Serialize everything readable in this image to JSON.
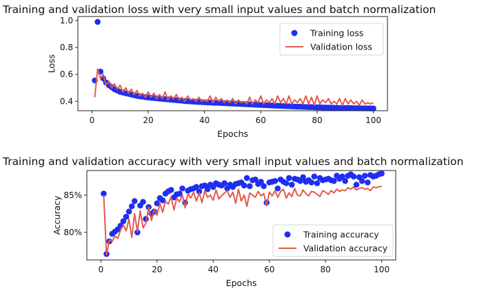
{
  "chart_data": [
    {
      "type": "scatter",
      "title": "Training and validation loss with very small input values and batch normalization",
      "xlabel": "Epochs",
      "ylabel": "Loss",
      "xlim": [
        -5,
        105
      ],
      "ylim": [
        0.33,
        1.03
      ],
      "x_ticks": [
        {
          "v": 0,
          "label": "0"
        },
        {
          "v": 20,
          "label": "20"
        },
        {
          "v": 40,
          "label": "40"
        },
        {
          "v": 60,
          "label": "60"
        },
        {
          "v": 80,
          "label": "80"
        },
        {
          "v": 100,
          "label": "100"
        }
      ],
      "y_ticks": [
        {
          "v": 0.4,
          "label": "0.4"
        },
        {
          "v": 0.6,
          "label": "0.6"
        },
        {
          "v": 0.8,
          "label": "0.8"
        },
        {
          "v": 1.0,
          "label": "1.0"
        }
      ],
      "legend_position": "top-right",
      "grid": false,
      "series": [
        {
          "name": "Training loss",
          "style": "points",
          "color": "#1f2ff0",
          "x": [
            1,
            2,
            3,
            4,
            5,
            6,
            7,
            8,
            9,
            10,
            11,
            12,
            13,
            14,
            15,
            16,
            17,
            18,
            19,
            20,
            21,
            22,
            23,
            24,
            25,
            26,
            27,
            28,
            29,
            30,
            31,
            32,
            33,
            34,
            35,
            36,
            37,
            38,
            39,
            40,
            41,
            42,
            43,
            44,
            45,
            46,
            47,
            48,
            49,
            50,
            51,
            52,
            53,
            54,
            55,
            56,
            57,
            58,
            59,
            60,
            61,
            62,
            63,
            64,
            65,
            66,
            67,
            68,
            69,
            70,
            71,
            72,
            73,
            74,
            75,
            76,
            77,
            78,
            79,
            80,
            81,
            82,
            83,
            84,
            85,
            86,
            87,
            88,
            89,
            90,
            91,
            92,
            93,
            94,
            95,
            96,
            97,
            98,
            99,
            100
          ],
          "values": [
            0.555,
            0.99,
            0.62,
            0.57,
            0.54,
            0.52,
            0.505,
            0.49,
            0.48,
            0.47,
            0.465,
            0.46,
            0.455,
            0.45,
            0.445,
            0.44,
            0.437,
            0.434,
            0.431,
            0.428,
            0.426,
            0.424,
            0.422,
            0.42,
            0.418,
            0.416,
            0.414,
            0.412,
            0.41,
            0.408,
            0.406,
            0.404,
            0.402,
            0.4,
            0.399,
            0.398,
            0.396,
            0.395,
            0.394,
            0.393,
            0.392,
            0.391,
            0.39,
            0.389,
            0.388,
            0.387,
            0.386,
            0.385,
            0.384,
            0.383,
            0.382,
            0.381,
            0.38,
            0.379,
            0.378,
            0.377,
            0.376,
            0.375,
            0.374,
            0.373,
            0.372,
            0.371,
            0.37,
            0.369,
            0.368,
            0.367,
            0.366,
            0.365,
            0.364,
            0.363,
            0.362,
            0.361,
            0.36,
            0.36,
            0.359,
            0.358,
            0.357,
            0.357,
            0.356,
            0.355,
            0.355,
            0.354,
            0.354,
            0.353,
            0.353,
            0.352,
            0.352,
            0.351,
            0.351,
            0.35,
            0.35,
            0.35,
            0.349,
            0.349,
            0.349,
            0.348,
            0.348,
            0.348,
            0.347,
            0.347
          ]
        },
        {
          "name": "Validation loss",
          "style": "line",
          "color": "#e05a4e",
          "x": [
            1,
            2,
            3,
            4,
            5,
            6,
            7,
            8,
            9,
            10,
            11,
            12,
            13,
            14,
            15,
            16,
            17,
            18,
            19,
            20,
            21,
            22,
            23,
            24,
            25,
            26,
            27,
            28,
            29,
            30,
            31,
            32,
            33,
            34,
            35,
            36,
            37,
            38,
            39,
            40,
            41,
            42,
            43,
            44,
            45,
            46,
            47,
            48,
            49,
            50,
            51,
            52,
            53,
            54,
            55,
            56,
            57,
            58,
            59,
            60,
            61,
            62,
            63,
            64,
            65,
            66,
            67,
            68,
            69,
            70,
            71,
            72,
            73,
            74,
            75,
            76,
            77,
            78,
            79,
            80,
            81,
            82,
            83,
            84,
            85,
            86,
            87,
            88,
            89,
            90,
            91,
            92,
            93,
            94,
            95,
            96,
            97,
            98,
            99,
            100
          ],
          "values": [
            0.43,
            0.64,
            0.57,
            0.6,
            0.52,
            0.55,
            0.5,
            0.53,
            0.49,
            0.52,
            0.47,
            0.5,
            0.46,
            0.49,
            0.45,
            0.48,
            0.44,
            0.46,
            0.43,
            0.47,
            0.43,
            0.46,
            0.42,
            0.45,
            0.42,
            0.47,
            0.41,
            0.44,
            0.42,
            0.45,
            0.41,
            0.43,
            0.4,
            0.44,
            0.41,
            0.42,
            0.4,
            0.43,
            0.4,
            0.41,
            0.4,
            0.44,
            0.39,
            0.43,
            0.4,
            0.42,
            0.39,
            0.41,
            0.39,
            0.42,
            0.38,
            0.41,
            0.39,
            0.4,
            0.38,
            0.43,
            0.38,
            0.41,
            0.39,
            0.44,
            0.38,
            0.41,
            0.39,
            0.42,
            0.38,
            0.44,
            0.39,
            0.42,
            0.38,
            0.44,
            0.38,
            0.41,
            0.39,
            0.42,
            0.38,
            0.44,
            0.38,
            0.43,
            0.37,
            0.44,
            0.38,
            0.41,
            0.39,
            0.42,
            0.38,
            0.4,
            0.38,
            0.42,
            0.37,
            0.42,
            0.38,
            0.41,
            0.38,
            0.4,
            0.37,
            0.41,
            0.38,
            0.39,
            0.38,
            0.39
          ]
        }
      ]
    },
    {
      "type": "scatter",
      "title": "Training and validation accuracy with very small input values and batch normalization",
      "xlabel": "Epochs",
      "ylabel": "Accuracy",
      "xlim": [
        -5,
        105
      ],
      "ylim": [
        76.3,
        88.3
      ],
      "x_ticks": [
        {
          "v": 0,
          "label": "0"
        },
        {
          "v": 20,
          "label": "20"
        },
        {
          "v": 40,
          "label": "40"
        },
        {
          "v": 60,
          "label": "60"
        },
        {
          "v": 80,
          "label": "80"
        },
        {
          "v": 100,
          "label": "100"
        }
      ],
      "y_ticks": [
        {
          "v": 80,
          "label": "80%"
        },
        {
          "v": 85,
          "label": "85%"
        }
      ],
      "legend_position": "bottom-right",
      "grid": false,
      "series": [
        {
          "name": "Training accuracy",
          "style": "points",
          "color": "#1f2ff0",
          "x": [
            1,
            2,
            3,
            4,
            5,
            6,
            7,
            8,
            9,
            10,
            11,
            12,
            13,
            14,
            15,
            16,
            17,
            18,
            19,
            20,
            21,
            22,
            23,
            24,
            25,
            26,
            27,
            28,
            29,
            30,
            31,
            32,
            33,
            34,
            35,
            36,
            37,
            38,
            39,
            40,
            41,
            42,
            43,
            44,
            45,
            46,
            47,
            48,
            49,
            50,
            51,
            52,
            53,
            54,
            55,
            56,
            57,
            58,
            59,
            60,
            61,
            62,
            63,
            64,
            65,
            66,
            67,
            68,
            69,
            70,
            71,
            72,
            73,
            74,
            75,
            76,
            77,
            78,
            79,
            80,
            81,
            82,
            83,
            84,
            85,
            86,
            87,
            88,
            89,
            90,
            91,
            92,
            93,
            94,
            95,
            96,
            97,
            98,
            99,
            100
          ],
          "values": [
            85.2,
            77.1,
            78.8,
            79.8,
            80.1,
            80.4,
            80.9,
            81.5,
            82.1,
            82.8,
            83.5,
            84.2,
            80.0,
            83.6,
            84.1,
            81.8,
            83.4,
            82.5,
            82.8,
            83.9,
            84.6,
            84.3,
            85.2,
            85.5,
            85.7,
            84.7,
            85.1,
            85.2,
            85.9,
            84.0,
            85.6,
            85.8,
            85.9,
            86.1,
            85.5,
            86.2,
            86.3,
            85.8,
            86.4,
            86.1,
            86.6,
            86.4,
            86.3,
            86.6,
            85.9,
            86.4,
            86.1,
            86.5,
            86.6,
            86.7,
            86.3,
            87.3,
            86.2,
            87.0,
            87.1,
            86.5,
            86.8,
            86.2,
            84.0,
            86.7,
            86.8,
            86.9,
            85.9,
            87.1,
            86.8,
            86.6,
            87.3,
            86.4,
            87.2,
            87.1,
            86.9,
            87.4,
            86.8,
            87.0,
            86.7,
            87.5,
            86.6,
            87.3,
            87.0,
            87.1,
            87.2,
            87.0,
            86.9,
            87.6,
            87.2,
            87.5,
            86.9,
            87.6,
            87.8,
            87.5,
            86.4,
            87.4,
            86.9,
            87.6,
            86.7,
            87.7,
            87.5,
            87.6,
            87.8,
            87.9
          ]
        },
        {
          "name": "Validation accuracy",
          "style": "line",
          "color": "#e05a4e",
          "x": [
            1,
            2,
            3,
            4,
            5,
            6,
            7,
            8,
            9,
            10,
            11,
            12,
            13,
            14,
            15,
            16,
            17,
            18,
            19,
            20,
            21,
            22,
            23,
            24,
            25,
            26,
            27,
            28,
            29,
            30,
            31,
            32,
            33,
            34,
            35,
            36,
            37,
            38,
            39,
            40,
            41,
            42,
            43,
            44,
            45,
            46,
            47,
            48,
            49,
            50,
            51,
            52,
            53,
            54,
            55,
            56,
            57,
            58,
            59,
            60,
            61,
            62,
            63,
            64,
            65,
            66,
            67,
            68,
            69,
            70,
            71,
            72,
            73,
            74,
            75,
            76,
            77,
            78,
            79,
            80,
            81,
            82,
            83,
            84,
            85,
            86,
            87,
            88,
            89,
            90,
            91,
            92,
            93,
            94,
            95,
            96,
            97,
            98,
            99,
            100
          ],
          "values": [
            85.0,
            77.0,
            79.0,
            78.8,
            79.5,
            79.2,
            80.3,
            81.0,
            80.2,
            81.8,
            79.3,
            82.5,
            80.1,
            82.9,
            80.6,
            81.2,
            83.4,
            81.6,
            83.1,
            82.3,
            83.9,
            82.7,
            84.2,
            83.8,
            84.8,
            83.0,
            84.6,
            84.1,
            85.0,
            83.3,
            85.2,
            84.6,
            85.4,
            84.2,
            85.3,
            84.0,
            85.6,
            84.7,
            85.0,
            84.3,
            85.7,
            84.5,
            84.9,
            85.3,
            85.6,
            84.7,
            85.4,
            83.9,
            85.8,
            84.2,
            85.0,
            83.5,
            85.3,
            85.0,
            84.7,
            85.5,
            84.9,
            85.2,
            83.6,
            85.4,
            84.9,
            85.6,
            84.7,
            85.5,
            85.8,
            84.6,
            85.3,
            84.8,
            85.9,
            85.0,
            84.9,
            85.7,
            85.2,
            84.9,
            85.5,
            85.4,
            85.1,
            84.8,
            85.6,
            85.4,
            85.1,
            85.6,
            85.3,
            85.8,
            85.5,
            85.7,
            85.6,
            86.0,
            85.8,
            86.1,
            85.7,
            85.9,
            86.0,
            85.8,
            85.9,
            85.6,
            86.1,
            86.0,
            86.1,
            86.2
          ]
        }
      ]
    }
  ]
}
